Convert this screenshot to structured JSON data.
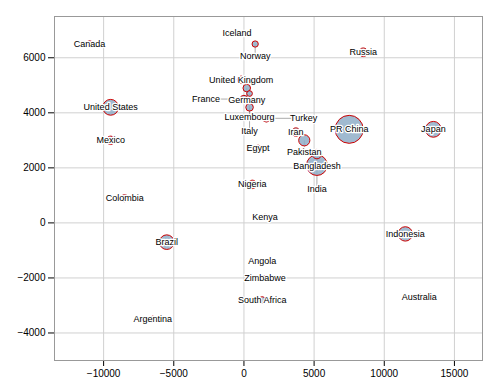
{
  "chart_data": {
    "type": "bubble",
    "labels": [
      "Canada",
      "United States",
      "Mexico",
      "Colombia",
      "Brazil",
      "Argentina",
      "Iceland",
      "Norway",
      "United Kingdom",
      "Germany",
      "Luxembourg",
      "France",
      "Italy",
      "Turkey",
      "Egypt",
      "Nigeria",
      "Kenya",
      "Angola",
      "Zimbabwe",
      "South Africa",
      "Iran",
      "Pakistan",
      "Bangladesh",
      "India",
      "PR China",
      "Russia",
      "Japan",
      "Indonesia",
      "Australia"
    ],
    "x": [
      -11000,
      -9500,
      -9500,
      -8500,
      -5500,
      -6500,
      -500,
      800,
      -200,
      200,
      400,
      0,
      400,
      1600,
      1000,
      600,
      1500,
      1300,
      1500,
      1300,
      3700,
      4300,
      5200,
      5200,
      7500,
      8500,
      13500,
      11500,
      12500
    ],
    "values": [
      6500,
      4200,
      3000,
      900,
      -700,
      -3500,
      6900,
      6500,
      5200,
      4900,
      4700,
      4500,
      4200,
      3800,
      2700,
      1400,
      200,
      -1400,
      -2000,
      -2800,
      3300,
      3000,
      2500,
      2100,
      3400,
      6200,
      3400,
      -400,
      -2700
    ],
    "size": [
      120,
      700,
      200,
      140,
      600,
      110,
      70,
      110,
      160,
      160,
      90,
      160,
      160,
      160,
      140,
      200,
      110,
      80,
      70,
      120,
      200,
      350,
      250,
      1200,
      2200,
      210,
      700,
      580,
      120
    ],
    "color": "#8faec8",
    "edge_color": "#cc0000",
    "label_color": "#000000",
    "grid_color": "#d0d0d0",
    "background": "#ffffff",
    "xlim": [
      -13500,
      17000
    ],
    "ylim": [
      -5000,
      7500
    ],
    "xticks": [
      -10000,
      -5000,
      0,
      5000,
      10000,
      15000
    ],
    "yticks": [
      -4000,
      -2000,
      0,
      2000,
      4000,
      6000
    ],
    "grid": true
  }
}
